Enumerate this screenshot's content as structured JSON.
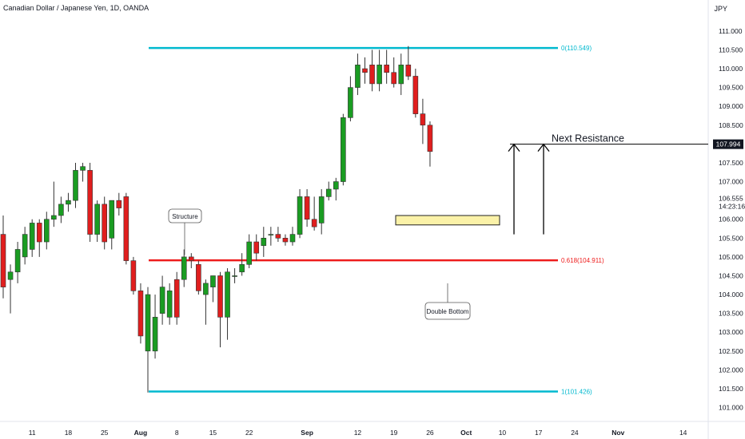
{
  "header": {
    "title": "Canadian Dollar / Japanese Yen, 1D, OANDA",
    "currency": "JPY"
  },
  "colors": {
    "up": "#1a9c22",
    "down": "#e01e1e",
    "fib_outer": "#00b9cf",
    "fib_mid": "#ee1c1c",
    "zone_fill": "#fbf2a8",
    "zone_border": "#222222",
    "axis_text": "#131722"
  },
  "price_axis": {
    "min": 100.8,
    "max": 111.4,
    "ticks": [
      "111.000",
      "110.500",
      "110.000",
      "109.500",
      "109.000",
      "108.500",
      "108.000",
      "107.500",
      "107.000",
      "106.000",
      "105.500",
      "105.000",
      "104.500",
      "104.000",
      "103.500",
      "103.000",
      "102.500",
      "102.000",
      "101.500",
      "101.000"
    ],
    "current_price": "106.555",
    "countdown": "14:23:16",
    "resistance_label": "107.994"
  },
  "date_axis": {
    "ticks": [
      {
        "label": "11",
        "index": -1,
        "month": false
      },
      {
        "label": "18",
        "index": 4,
        "month": false
      },
      {
        "label": "25",
        "index": 9,
        "month": false
      },
      {
        "label": "Aug",
        "index": 14,
        "month": true
      },
      {
        "label": "8",
        "index": 19,
        "month": false
      },
      {
        "label": "15",
        "index": 24,
        "month": false
      },
      {
        "label": "22",
        "index": 29,
        "month": false
      },
      {
        "label": "Sep",
        "index": 37,
        "month": true
      },
      {
        "label": "12",
        "index": 44,
        "month": false
      },
      {
        "label": "19",
        "index": 49,
        "month": false
      },
      {
        "label": "26",
        "index": 54,
        "month": false
      },
      {
        "label": "Oct",
        "index": 59,
        "month": true
      },
      {
        "label": "10",
        "index": 64,
        "month": false
      },
      {
        "label": "17",
        "index": 69,
        "month": false
      },
      {
        "label": "24",
        "index": 74,
        "month": false
      },
      {
        "label": "Nov",
        "index": 80,
        "month": true
      },
      {
        "label": "14",
        "index": 89,
        "month": false
      }
    ]
  },
  "chart_data": {
    "type": "candlestick",
    "title": "Canadian Dollar / Japanese Yen, 1D, OANDA",
    "ylim": [
      100.8,
      111.4
    ],
    "candles": [
      {
        "o": 105.6,
        "h": 106.1,
        "l": 103.9,
        "c": 104.2
      },
      {
        "o": 104.4,
        "h": 104.8,
        "l": 103.5,
        "c": 104.6
      },
      {
        "o": 104.6,
        "h": 105.4,
        "l": 104.3,
        "c": 105.2
      },
      {
        "o": 105.0,
        "h": 105.8,
        "l": 104.8,
        "c": 105.6
      },
      {
        "o": 105.2,
        "h": 106.0,
        "l": 105.0,
        "c": 105.9
      },
      {
        "o": 105.9,
        "h": 106.0,
        "l": 105.0,
        "c": 105.4
      },
      {
        "o": 105.4,
        "h": 106.2,
        "l": 105.2,
        "c": 106.0
      },
      {
        "o": 106.0,
        "h": 107.0,
        "l": 105.8,
        "c": 106.1
      },
      {
        "o": 106.1,
        "h": 106.6,
        "l": 105.9,
        "c": 106.4
      },
      {
        "o": 106.4,
        "h": 106.7,
        "l": 106.2,
        "c": 106.5
      },
      {
        "o": 106.5,
        "h": 107.5,
        "l": 106.3,
        "c": 107.3
      },
      {
        "o": 107.3,
        "h": 107.5,
        "l": 107.0,
        "c": 107.4
      },
      {
        "o": 107.3,
        "h": 107.5,
        "l": 105.4,
        "c": 105.6
      },
      {
        "o": 105.6,
        "h": 106.5,
        "l": 105.4,
        "c": 106.4
      },
      {
        "o": 106.4,
        "h": 106.6,
        "l": 105.2,
        "c": 105.4
      },
      {
        "o": 105.5,
        "h": 106.5,
        "l": 105.2,
        "c": 106.5
      },
      {
        "o": 106.5,
        "h": 106.7,
        "l": 106.1,
        "c": 106.3
      },
      {
        "o": 106.6,
        "h": 106.7,
        "l": 104.8,
        "c": 104.9
      },
      {
        "o": 104.9,
        "h": 105.0,
        "l": 104.0,
        "c": 104.1
      },
      {
        "o": 104.1,
        "h": 104.3,
        "l": 102.7,
        "c": 102.9
      },
      {
        "o": 102.5,
        "h": 104.2,
        "l": 101.4,
        "c": 104.0
      },
      {
        "o": 102.5,
        "h": 104.0,
        "l": 102.3,
        "c": 103.4
      },
      {
        "o": 103.5,
        "h": 104.5,
        "l": 103.2,
        "c": 104.2
      },
      {
        "o": 103.4,
        "h": 104.3,
        "l": 103.2,
        "c": 104.1
      },
      {
        "o": 104.4,
        "h": 104.6,
        "l": 103.2,
        "c": 103.4
      },
      {
        "o": 104.4,
        "h": 105.2,
        "l": 104.2,
        "c": 105.0
      },
      {
        "o": 105.0,
        "h": 105.1,
        "l": 104.7,
        "c": 104.9
      },
      {
        "o": 104.8,
        "h": 104.9,
        "l": 104.0,
        "c": 104.1
      },
      {
        "o": 104.0,
        "h": 104.4,
        "l": 103.2,
        "c": 104.3
      },
      {
        "o": 104.2,
        "h": 104.5,
        "l": 103.8,
        "c": 104.5
      },
      {
        "o": 104.5,
        "h": 104.6,
        "l": 102.6,
        "c": 103.4
      },
      {
        "o": 103.4,
        "h": 104.7,
        "l": 102.8,
        "c": 104.6
      },
      {
        "o": 104.5,
        "h": 104.7,
        "l": 104.3,
        "c": 104.5
      },
      {
        "o": 104.6,
        "h": 105.1,
        "l": 104.5,
        "c": 104.8
      },
      {
        "o": 104.8,
        "h": 105.6,
        "l": 104.7,
        "c": 105.4
      },
      {
        "o": 105.4,
        "h": 105.6,
        "l": 104.9,
        "c": 105.1
      },
      {
        "o": 105.3,
        "h": 105.8,
        "l": 105.0,
        "c": 105.5
      },
      {
        "o": 105.6,
        "h": 105.8,
        "l": 105.3,
        "c": 105.6
      },
      {
        "o": 105.6,
        "h": 105.8,
        "l": 105.4,
        "c": 105.5
      },
      {
        "o": 105.5,
        "h": 105.6,
        "l": 105.3,
        "c": 105.4
      },
      {
        "o": 105.4,
        "h": 105.8,
        "l": 105.3,
        "c": 105.6
      },
      {
        "o": 105.6,
        "h": 106.8,
        "l": 105.5,
        "c": 106.6
      },
      {
        "o": 106.6,
        "h": 106.8,
        "l": 105.8,
        "c": 106.0
      },
      {
        "o": 106.0,
        "h": 106.6,
        "l": 105.7,
        "c": 105.8
      },
      {
        "o": 105.9,
        "h": 106.8,
        "l": 105.6,
        "c": 106.6
      },
      {
        "o": 106.6,
        "h": 107.0,
        "l": 106.5,
        "c": 106.8
      },
      {
        "o": 106.8,
        "h": 107.1,
        "l": 106.5,
        "c": 107.0
      },
      {
        "o": 107.0,
        "h": 108.8,
        "l": 106.9,
        "c": 108.7
      },
      {
        "o": 108.7,
        "h": 109.8,
        "l": 108.6,
        "c": 109.5
      },
      {
        "o": 109.5,
        "h": 110.4,
        "l": 109.3,
        "c": 110.1
      },
      {
        "o": 110.0,
        "h": 110.3,
        "l": 109.6,
        "c": 109.9
      },
      {
        "o": 110.1,
        "h": 110.5,
        "l": 109.4,
        "c": 109.6
      },
      {
        "o": 109.6,
        "h": 110.5,
        "l": 109.4,
        "c": 110.1
      },
      {
        "o": 110.1,
        "h": 110.5,
        "l": 109.6,
        "c": 109.9
      },
      {
        "o": 109.9,
        "h": 110.3,
        "l": 109.5,
        "c": 109.6
      },
      {
        "o": 109.6,
        "h": 110.4,
        "l": 109.3,
        "c": 110.1
      },
      {
        "o": 110.1,
        "h": 110.6,
        "l": 109.7,
        "c": 109.8
      },
      {
        "o": 109.8,
        "h": 110.0,
        "l": 108.7,
        "c": 108.8
      },
      {
        "o": 108.8,
        "h": 109.2,
        "l": 108.0,
        "c": 108.5
      },
      {
        "o": 108.5,
        "h": 108.6,
        "l": 107.4,
        "c": 107.8
      }
    ],
    "fib_levels": [
      {
        "label": "0(110.549)",
        "price": 110.549,
        "kind": "outer"
      },
      {
        "label": "0.618(104.911)",
        "price": 104.911,
        "kind": "mid"
      },
      {
        "label": "1(101.426)",
        "price": 101.426,
        "kind": "outer"
      }
    ],
    "annotations": {
      "structure": "Structure",
      "double_bottom": "Double Bottom",
      "next_resistance": "Next Resistance"
    }
  }
}
